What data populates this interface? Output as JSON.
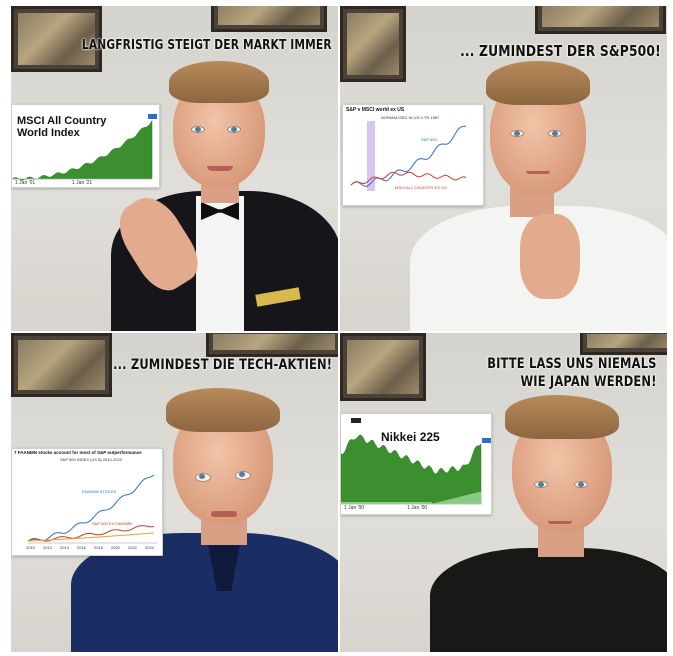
{
  "panels": [
    {
      "caption": "LANGFRISTIG STEIGT DER MARKT IMMER",
      "card": {
        "title_line1": "MSCI All Country",
        "title_line2": "World Index",
        "price_tag": "",
        "x_start": "1 Jan '01",
        "x_end": "1 Jan '21"
      }
    },
    {
      "caption": "... ZUMINDEST DER S&P500!",
      "card": {
        "title": "S&P v MSCI world ex US",
        "subtitle": "NORMALISED IN US 0-TR 1987",
        "series1_label": "S&P 500",
        "series2_label": "MSCI ALL COUNTRY EX US"
      }
    },
    {
      "caption": "... ZUMINDEST DIE TECH-AKTIEN!",
      "card": {
        "title": "7 FAANMN stocks account for most of S&P outperformance",
        "subtitle": "S&P 500 INDEX (US $) 2010-2023",
        "series1_label": "FAANMN STOCKS",
        "series2_label": "S&P 500 EX FAANMN",
        "x_ticks": [
          "2010",
          "2012",
          "2014",
          "2016",
          "2018",
          "2020",
          "2022",
          "2024"
        ]
      }
    },
    {
      "caption_line1": "BITTE LASS UNS NIEMALS",
      "caption_line2": "WIE JAPAN WERDEN!",
      "card": {
        "title": "Nikkei 225",
        "x_start": "1 Jan '90",
        "x_end": "1 Jan '00"
      }
    }
  ],
  "colors": {
    "green": "#3b8f2f",
    "blue": "#2a6fd0",
    "red": "#d23a2e",
    "tux": "#16161a",
    "shirt_white": "#f4f4f2",
    "navy": "#1b2e63",
    "black_tee": "#1a1717"
  }
}
